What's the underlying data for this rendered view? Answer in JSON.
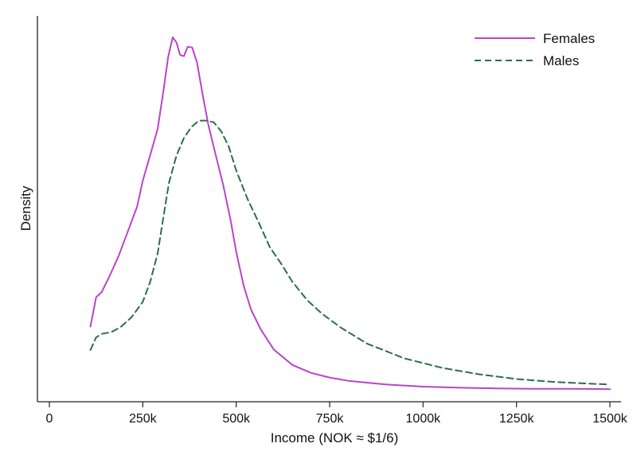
{
  "chart_data": {
    "type": "line",
    "title": "",
    "xlabel": "Income (NOK ≈ $1/6)",
    "ylabel": "Density",
    "xlim": [
      0,
      1500000
    ],
    "ylim": [
      0,
      1
    ],
    "grid": false,
    "legend_position": "top-right",
    "x_ticks": [
      {
        "value": 0,
        "label": "0"
      },
      {
        "value": 250000,
        "label": "250k"
      },
      {
        "value": 500000,
        "label": "500k"
      },
      {
        "value": 750000,
        "label": "750k"
      },
      {
        "value": 1000000,
        "label": "1000k"
      },
      {
        "value": 1250000,
        "label": "1250k"
      },
      {
        "value": 1500000,
        "label": "1500k"
      }
    ],
    "series": [
      {
        "name": "Females",
        "color": "#b944c9",
        "dash": "solid",
        "points": [
          [
            110000,
            0.177
          ],
          [
            125000,
            0.258
          ],
          [
            140000,
            0.272
          ],
          [
            160000,
            0.314
          ],
          [
            185000,
            0.371
          ],
          [
            210000,
            0.44
          ],
          [
            235000,
            0.509
          ],
          [
            250000,
            0.58
          ],
          [
            270000,
            0.651
          ],
          [
            290000,
            0.724
          ],
          [
            305000,
            0.826
          ],
          [
            318000,
            0.922
          ],
          [
            330000,
            0.976
          ],
          [
            340000,
            0.962
          ],
          [
            350000,
            0.927
          ],
          [
            360000,
            0.924
          ],
          [
            370000,
            0.95
          ],
          [
            382000,
            0.948
          ],
          [
            395000,
            0.907
          ],
          [
            410000,
            0.819
          ],
          [
            425000,
            0.736
          ],
          [
            445000,
            0.651
          ],
          [
            465000,
            0.569
          ],
          [
            485000,
            0.471
          ],
          [
            500000,
            0.383
          ],
          [
            520000,
            0.289
          ],
          [
            540000,
            0.223
          ],
          [
            565000,
            0.17
          ],
          [
            600000,
            0.114
          ],
          [
            650000,
            0.071
          ],
          [
            700000,
            0.049
          ],
          [
            750000,
            0.036
          ],
          [
            800000,
            0.027
          ],
          [
            900000,
            0.017
          ],
          [
            1000000,
            0.011
          ],
          [
            1100000,
            0.008
          ],
          [
            1200000,
            0.006
          ],
          [
            1300000,
            0.005
          ],
          [
            1400000,
            0.005
          ],
          [
            1500000,
            0.004
          ]
        ]
      },
      {
        "name": "Males",
        "color": "#2a6e4c",
        "dash": "dashed",
        "points": [
          [
            110000,
            0.112
          ],
          [
            125000,
            0.147
          ],
          [
            140000,
            0.157
          ],
          [
            165000,
            0.161
          ],
          [
            190000,
            0.175
          ],
          [
            220000,
            0.203
          ],
          [
            250000,
            0.245
          ],
          [
            270000,
            0.301
          ],
          [
            290000,
            0.38
          ],
          [
            305000,
            0.478
          ],
          [
            320000,
            0.574
          ],
          [
            340000,
            0.649
          ],
          [
            360000,
            0.698
          ],
          [
            380000,
            0.728
          ],
          [
            400000,
            0.746
          ],
          [
            420000,
            0.746
          ],
          [
            440000,
            0.741
          ],
          [
            460000,
            0.716
          ],
          [
            480000,
            0.674
          ],
          [
            500000,
            0.608
          ],
          [
            530000,
            0.53
          ],
          [
            560000,
            0.465
          ],
          [
            590000,
            0.396
          ],
          [
            620000,
            0.351
          ],
          [
            650000,
            0.301
          ],
          [
            690000,
            0.25
          ],
          [
            730000,
            0.212
          ],
          [
            780000,
            0.174
          ],
          [
            850000,
            0.13
          ],
          [
            950000,
            0.089
          ],
          [
            1050000,
            0.063
          ],
          [
            1150000,
            0.045
          ],
          [
            1250000,
            0.032
          ],
          [
            1350000,
            0.024
          ],
          [
            1450000,
            0.019
          ],
          [
            1500000,
            0.017
          ]
        ]
      }
    ]
  }
}
